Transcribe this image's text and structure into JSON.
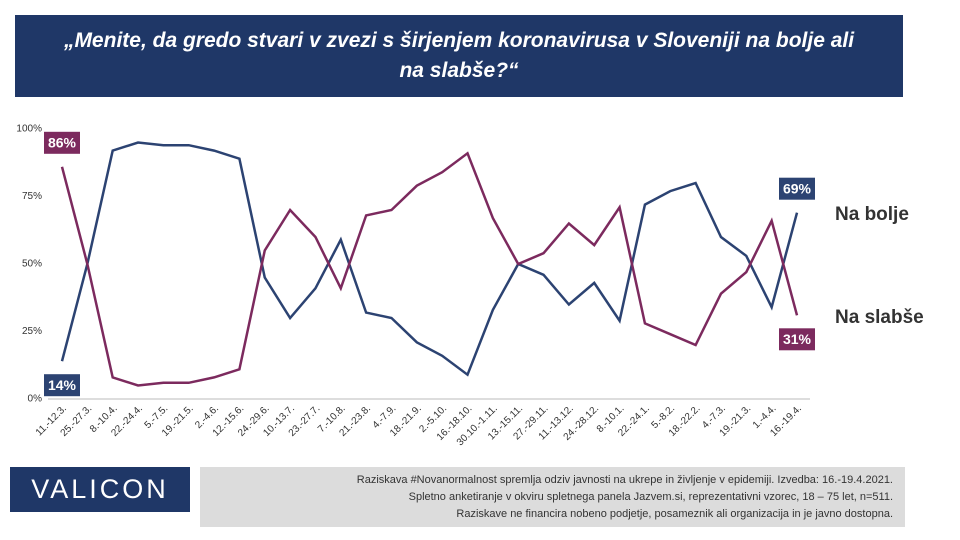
{
  "chart_data": {
    "type": "line",
    "title": "„Menite, da gredo stvari v zvezi s širjenjem koronavirusa v Sloveniji na bolje ali na slabše?“",
    "categories": [
      "11.-12.3.",
      "25.-27.3.",
      "8.-10.4.",
      "22.-24.4.",
      "5.-7.5.",
      "19.-21.5.",
      "2.-4.6.",
      "12.-15.6.",
      "24.-29.6.",
      "10.-13.7.",
      "23.-27.7.",
      "7.-10.8.",
      "21.-23.8.",
      "4.-7.9.",
      "18.-21.9.",
      "2.-5.10.",
      "16.-18.10.",
      "30.10.-1.11.",
      "13.-15.11.",
      "27.-29.11.",
      "11.-13.12.",
      "24.-28.12.",
      "8.-10.1.",
      "22.-24.1.",
      "5.-8.2.",
      "18.-22.2.",
      "4.-7.3.",
      "19.-21.3.",
      "1.-4.4.",
      "16.-19.4."
    ],
    "series": [
      {
        "name": "Na bolje",
        "color": "#2c4372",
        "values": [
          14,
          50,
          92,
          95,
          94,
          94,
          92,
          89,
          45,
          30,
          41,
          59,
          32,
          30,
          21,
          16,
          9,
          33,
          50,
          46,
          35,
          43,
          29,
          72,
          77,
          80,
          60,
          53,
          34,
          69
        ],
        "value_labels": [
          "14%",
          null,
          null,
          null,
          null,
          null,
          null,
          null,
          null,
          null,
          null,
          null,
          null,
          null,
          null,
          null,
          null,
          null,
          null,
          null,
          null,
          null,
          null,
          null,
          null,
          null,
          null,
          null,
          null,
          "69%"
        ]
      },
      {
        "name": "Na slabše",
        "color": "#7c2a5e",
        "values": [
          86,
          50,
          8,
          5,
          6,
          6,
          8,
          11,
          55,
          70,
          60,
          41,
          68,
          70,
          79,
          84,
          91,
          67,
          50,
          54,
          65,
          57,
          71,
          28,
          24,
          20,
          39,
          47,
          66,
          31
        ],
        "value_labels": [
          "86%",
          null,
          null,
          null,
          null,
          null,
          null,
          null,
          null,
          null,
          null,
          null,
          null,
          null,
          null,
          null,
          null,
          null,
          null,
          null,
          null,
          null,
          null,
          null,
          null,
          null,
          null,
          null,
          null,
          "31%"
        ]
      }
    ],
    "ylim": [
      0,
      100
    ],
    "yticks": [
      {
        "value": 0,
        "label": "0%"
      },
      {
        "value": 25,
        "label": "25%"
      },
      {
        "value": 50,
        "label": "50%"
      },
      {
        "value": 75,
        "label": "75%"
      },
      {
        "value": 100,
        "label": "100%"
      }
    ],
    "grid": false
  },
  "footer": {
    "logo": "VALICON",
    "lines": [
      "Raziskava #Novanormalnost spremlja odziv javnosti na ukrepe in življenje v epidemiji. Izvedba: 16.-19.4.2021.",
      "Spletno anketiranje v okviru spletnega panela Jazvem.si, reprezentativni vzorec, 18 – 75 let, n=511.",
      "Raziskave ne financira nobeno podjetje, posameznik ali organizacija in je javno dostopna."
    ]
  }
}
